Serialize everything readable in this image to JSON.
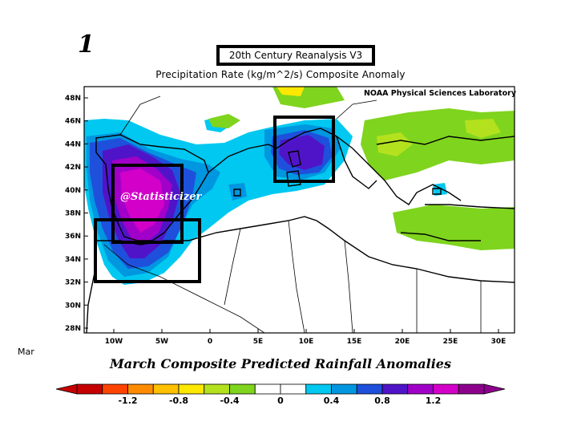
{
  "page_number": "1",
  "title": "20th Century Reanalysis V3",
  "subtitle": "Precipitation Rate (kg/m^2/s) Composite Anomaly",
  "credit": "NOAA Physical Sciences Laboratory",
  "watermark": "@Statisticizer",
  "month_label": "Mar",
  "caption": "March Composite Predicted Rainfall Anomalies",
  "map": {
    "lat_ticks": [
      "48N",
      "46N",
      "44N",
      "42N",
      "40N",
      "38N",
      "36N",
      "34N",
      "32N",
      "30N",
      "28N"
    ],
    "lon_ticks": [
      "10W",
      "5W",
      "0",
      "5E",
      "10E",
      "15E",
      "20E",
      "25E",
      "30E"
    ]
  },
  "colorbar": {
    "colors": [
      "#c60000",
      "#ff4400",
      "#ff8c00",
      "#ffc000",
      "#ffe800",
      "#b4e11e",
      "#7fd41e",
      "#ffffff",
      "#ffffff",
      "#00c8f0",
      "#0096e0",
      "#1e50dc",
      "#5014c8",
      "#a000c8",
      "#d200c8",
      "#8c008c"
    ],
    "tick_labels": [
      "-1.2",
      "-0.8",
      "-0.4",
      "0",
      "0.4",
      "0.8",
      "1.2"
    ],
    "tick_values": [
      -1.2,
      -0.8,
      -0.4,
      0,
      0.4,
      0.8,
      1.2
    ],
    "range": [
      -1.6,
      1.6
    ]
  }
}
